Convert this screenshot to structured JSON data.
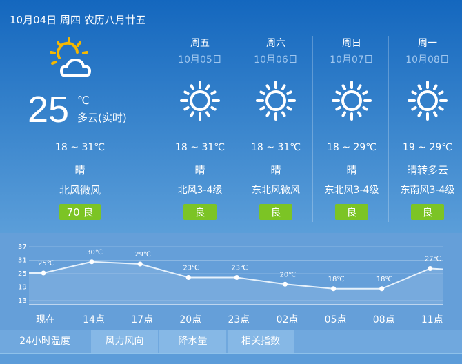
{
  "header": {
    "date": "10月04日 周四 农历八月廿五"
  },
  "current": {
    "icon": "partly-cloudy-icon",
    "temp": "25",
    "unit": "℃",
    "desc": "多云(实时)",
    "range": "18 ~ 31℃",
    "weather": "晴",
    "wind": "北风微风",
    "aqi": "70 良"
  },
  "forecast": [
    {
      "weekday": "周五",
      "date": "10月05日",
      "icon": "sun-icon",
      "range": "18 ~ 31℃",
      "weather": "晴",
      "wind": "北风3-4级",
      "aqi": "良"
    },
    {
      "weekday": "周六",
      "date": "10月06日",
      "icon": "sun-icon",
      "range": "18 ~ 31℃",
      "weather": "晴",
      "wind": "东北风微风",
      "aqi": "良"
    },
    {
      "weekday": "周日",
      "date": "10月07日",
      "icon": "sun-icon",
      "range": "18 ~ 29℃",
      "weather": "晴",
      "wind": "东北风3-4级",
      "aqi": "良"
    },
    {
      "weekday": "周一",
      "date": "10月08日",
      "icon": "sun-icon",
      "range": "19 ~ 29℃",
      "weather": "晴转多云",
      "wind": "东南风3-4级",
      "aqi": "良"
    }
  ],
  "colors": {
    "aqi_good": "#7cc425",
    "sun_current": "#f5b800"
  },
  "chart_data": {
    "type": "line",
    "categories": [
      "现在",
      "14点",
      "17点",
      "20点",
      "23点",
      "02点",
      "05点",
      "08点",
      "11点"
    ],
    "values": [
      25,
      30,
      29,
      23,
      23,
      20,
      18,
      18,
      27
    ],
    "data_labels": [
      "25℃",
      "30℃",
      "29℃",
      "23℃",
      "23℃",
      "20℃",
      "18℃",
      "18℃",
      "27℃"
    ],
    "yticks": [
      37,
      31,
      25,
      19,
      13
    ],
    "ylim": [
      11,
      37
    ],
    "grid": true
  },
  "tabs": [
    {
      "label": "24小时温度",
      "active": true
    },
    {
      "label": "风力风向"
    },
    {
      "label": "降水量"
    },
    {
      "label": "相关指数"
    }
  ]
}
